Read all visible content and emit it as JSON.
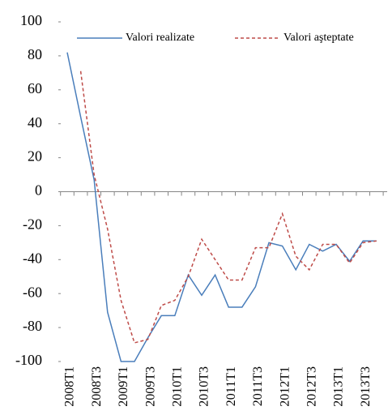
{
  "chart_data": {
    "type": "line",
    "categories": [
      "2008T1",
      null,
      "2008T3",
      null,
      "2009T1",
      null,
      "2009T3",
      null,
      "2010T1",
      null,
      "2010T3",
      null,
      "2011T1",
      null,
      "2011T3",
      null,
      "2012T1",
      null,
      "2012T3",
      null,
      "2013T1",
      null,
      "2013T3",
      null
    ],
    "series": [
      {
        "name": "Valori realizate",
        "color": "#4a7ebb",
        "dash": false,
        "values": [
          82,
          44,
          7,
          -71,
          -100,
          -100,
          -86,
          -73,
          -73,
          -49,
          -61,
          -49,
          -68,
          -68,
          -56,
          -30,
          -32,
          -46,
          -31,
          -35,
          -31,
          -41,
          -29,
          -29
        ]
      },
      {
        "name": "Valori aşteptate",
        "color": "#be4b48",
        "dash": true,
        "values": [
          null,
          71,
          10,
          -22,
          -64,
          -89,
          -87,
          -67,
          -64,
          -50,
          -28,
          -40,
          -52,
          -52,
          -33,
          -33,
          -13,
          -38,
          -46,
          -31,
          -31,
          -42,
          -30,
          -29
        ]
      }
    ],
    "ylim": [
      -100,
      100
    ],
    "yticks": [
      -100,
      -80,
      -60,
      -40,
      -20,
      0,
      20,
      40,
      60,
      80,
      100
    ],
    "legend": "top",
    "grid": false
  }
}
